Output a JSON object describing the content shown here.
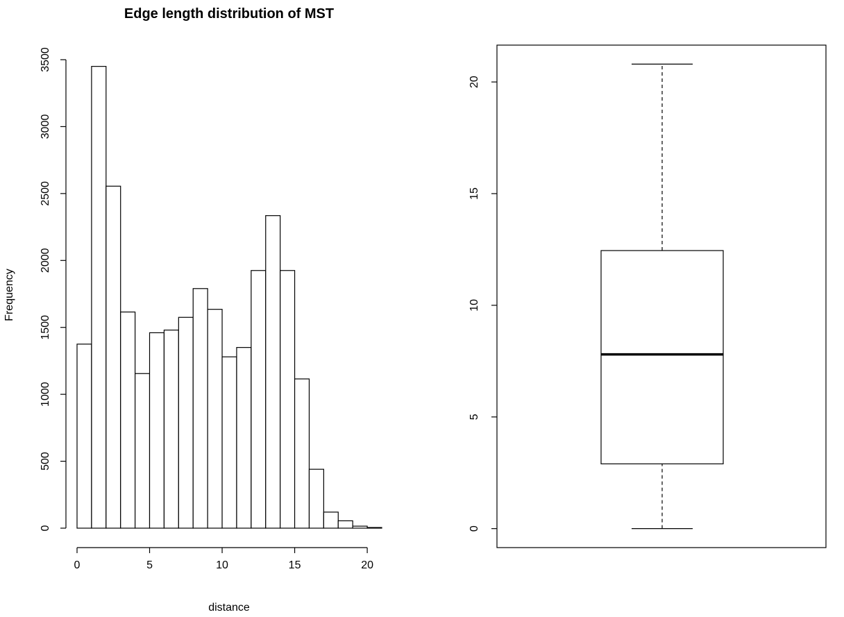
{
  "chart_data": [
    {
      "type": "bar",
      "title": "Edge length distribution of MST",
      "xlabel": "distance",
      "ylabel": "Frequency",
      "bin_width": 1,
      "bin_starts": [
        0,
        1,
        2,
        3,
        4,
        5,
        6,
        7,
        8,
        9,
        10,
        11,
        12,
        13,
        14,
        15,
        16,
        17,
        18,
        19,
        20
      ],
      "values": [
        1375,
        3450,
        2555,
        1615,
        1155,
        1460,
        1480,
        1575,
        1790,
        1635,
        1280,
        1350,
        1925,
        2335,
        1925,
        1115,
        440,
        120,
        55,
        15,
        5
      ],
      "xlim": [
        0,
        21
      ],
      "ylim": [
        0,
        3500
      ],
      "xticks": [
        0,
        5,
        10,
        15,
        20
      ],
      "yticks": [
        0,
        500,
        1000,
        1500,
        2000,
        2500,
        3000,
        3500
      ],
      "grid": false
    },
    {
      "type": "box",
      "min": 0,
      "q1": 2.9,
      "median": 7.8,
      "q3": 12.45,
      "max": 20.8,
      "ylim": [
        -0.85,
        21.65
      ],
      "yticks": [
        0,
        5,
        10,
        15,
        20
      ],
      "grid": false
    }
  ]
}
